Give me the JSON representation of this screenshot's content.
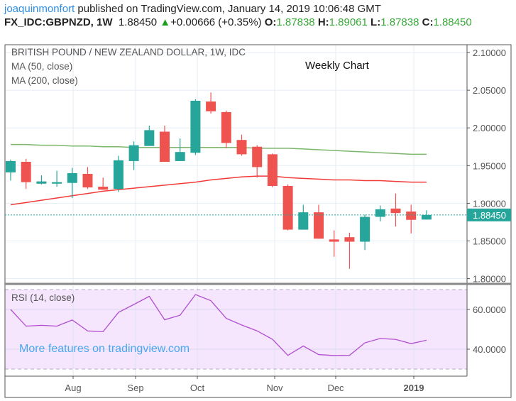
{
  "header": {
    "user": "joaquinmonfort",
    "published": "published on TradingView.com, January 14, 2019 10:06:48 GMT",
    "symbol": "FX_IDC:GBPNZD, 1W",
    "last": "1.88450",
    "change": "+0.00666 (+0.35%)",
    "o_label": "O:",
    "o": "1.87838",
    "h_label": "H:",
    "h": "1.89061",
    "l_label": "L:",
    "l": "1.87838",
    "c_label": "C:",
    "c": "1.88450"
  },
  "legend": {
    "title": "BRITISH POUND / NEW ZEALAND DOLLAR, 1W, IDC",
    "ma1": "MA (50, close)",
    "ma2": "MA (200, close)",
    "rsi": "RSI (14, close)"
  },
  "annotation": "Weekly Chart",
  "watermark": "More features on tradingview.com",
  "colors": {
    "up": "#26a69a",
    "down": "#ef5350",
    "ma_green": "#7cb66b",
    "ma_red": "#f23a3a",
    "rsi": "#b04fd0",
    "rsi_bg": "#f5e6fd"
  },
  "chart_data": [
    {
      "type": "candlestick",
      "ylim": [
        1.8,
        2.1
      ],
      "yticks": [
        "2.10000",
        "2.05000",
        "2.00000",
        "1.95000",
        "1.90000",
        "1.85000",
        "1.80000"
      ],
      "last_price_label": "1.88450",
      "xticks": [
        "Aug",
        "Sep",
        "Oct",
        "Nov",
        "Dec",
        "2019"
      ],
      "grid": true,
      "ohlc": [
        [
          1.941,
          1.958,
          1.93,
          1.956
        ],
        [
          1.955,
          1.959,
          1.919,
          1.928
        ],
        [
          1.926,
          1.937,
          1.925,
          1.929
        ],
        [
          1.926,
          1.943,
          1.922,
          1.928
        ],
        [
          1.927,
          1.947,
          1.907,
          1.94
        ],
        [
          1.939,
          1.948,
          1.919,
          1.921
        ],
        [
          1.922,
          1.934,
          1.918,
          1.918
        ],
        [
          1.919,
          1.963,
          1.915,
          1.957
        ],
        [
          1.956,
          1.982,
          1.944,
          1.977
        ],
        [
          1.976,
          2.003,
          1.976,
          1.997
        ],
        [
          1.995,
          2.003,
          1.955,
          1.955
        ],
        [
          1.956,
          1.986,
          1.956,
          1.968
        ],
        [
          1.967,
          2.038,
          1.964,
          2.036
        ],
        [
          2.035,
          2.047,
          2.019,
          2.022
        ],
        [
          2.021,
          2.023,
          1.973,
          1.98
        ],
        [
          1.984,
          1.991,
          1.963,
          1.965
        ],
        [
          1.975,
          1.977,
          1.934,
          1.948
        ],
        [
          1.965,
          1.966,
          1.921,
          1.923
        ],
        [
          1.923,
          1.925,
          1.864,
          1.865
        ],
        [
          1.865,
          1.898,
          1.865,
          1.888
        ],
        [
          1.888,
          1.898,
          1.853,
          1.853
        ],
        [
          1.852,
          1.864,
          1.829,
          1.849
        ],
        [
          1.855,
          1.861,
          1.813,
          1.849
        ],
        [
          1.849,
          1.885,
          1.838,
          1.882
        ],
        [
          1.882,
          1.897,
          1.876,
          1.892
        ],
        [
          1.893,
          1.913,
          1.869,
          1.887
        ],
        [
          1.889,
          1.898,
          1.86,
          1.878
        ],
        [
          1.87838,
          1.89061,
          1.87838,
          1.8845
        ]
      ],
      "series": [
        {
          "name": "MA (50, close)",
          "color": "#7cb66b",
          "values": [
            1.978,
            1.978,
            1.977,
            1.977,
            1.976,
            1.976,
            1.975,
            1.975,
            1.974,
            1.974,
            1.974,
            1.974,
            1.974,
            1.974,
            1.974,
            1.974,
            1.973,
            1.973,
            1.973,
            1.972,
            1.971,
            1.97,
            1.969,
            1.968,
            1.967,
            1.966,
            1.965,
            1.965
          ]
        },
        {
          "name": "MA (200, close)",
          "color": "#f23a3a",
          "values": [
            1.898,
            1.901,
            1.904,
            1.907,
            1.91,
            1.913,
            1.916,
            1.918,
            1.92,
            1.922,
            1.924,
            1.926,
            1.928,
            1.931,
            1.933,
            1.935,
            1.936,
            1.936,
            1.934,
            1.933,
            1.932,
            1.931,
            1.931,
            1.93,
            1.93,
            1.929,
            1.928,
            1.928
          ]
        }
      ]
    },
    {
      "type": "line",
      "title": "RSI (14, close)",
      "ylim": [
        30,
        70
      ],
      "yticks": [
        "60.0000",
        "40.0000"
      ],
      "bands": [
        30,
        70
      ],
      "series": [
        {
          "name": "RSI (14, close)",
          "values": [
            60,
            51.6,
            52,
            51.6,
            54.7,
            49.2,
            48.8,
            58.5,
            62.5,
            66.6,
            54.8,
            57.1,
            67.5,
            64.4,
            55.5,
            52.2,
            49.2,
            45,
            36.9,
            41.6,
            37.3,
            36.8,
            36.9,
            43.2,
            45.4,
            44.9,
            42.8,
            44.5
          ]
        }
      ]
    }
  ]
}
